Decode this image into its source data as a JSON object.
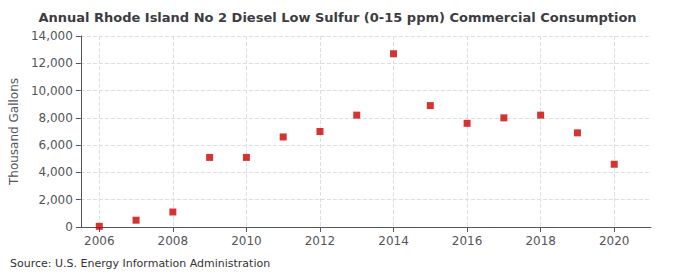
{
  "chart_data": {
    "type": "scatter",
    "title": "Annual Rhode Island No 2 Diesel Low Sulfur (0-15 ppm) Commercial Consumption",
    "ylabel": "Thousand Gallons",
    "annotation": "Source: U.S. Energy Information Administration",
    "x": [
      2006,
      2007,
      2008,
      2009,
      2010,
      2011,
      2012,
      2013,
      2014,
      2015,
      2016,
      2017,
      2018,
      2019,
      2020
    ],
    "values": [
      50,
      500,
      1100,
      5100,
      5100,
      6600,
      7000,
      8200,
      12700,
      8900,
      7600,
      8000,
      8200,
      6900,
      4600
    ],
    "color": "#cc0000",
    "marker": "square",
    "xlim": [
      2005.5,
      2021.0
    ],
    "ylim": [
      0,
      14000
    ],
    "xticks": [
      2006,
      2008,
      2010,
      2012,
      2014,
      2016,
      2018,
      2020
    ],
    "yticks": [
      0,
      {
        "value": 2000,
        "label": "2,000"
      },
      {
        "value": 4000,
        "label": "4,000"
      },
      {
        "value": 6000,
        "label": "6,000"
      },
      {
        "value": 8000,
        "label": "8,000"
      },
      {
        "value": 10000,
        "label": "10,000"
      },
      {
        "value": 12000,
        "label": "12,000"
      },
      {
        "value": 14000,
        "label": "14,000"
      }
    ],
    "grid": true
  }
}
